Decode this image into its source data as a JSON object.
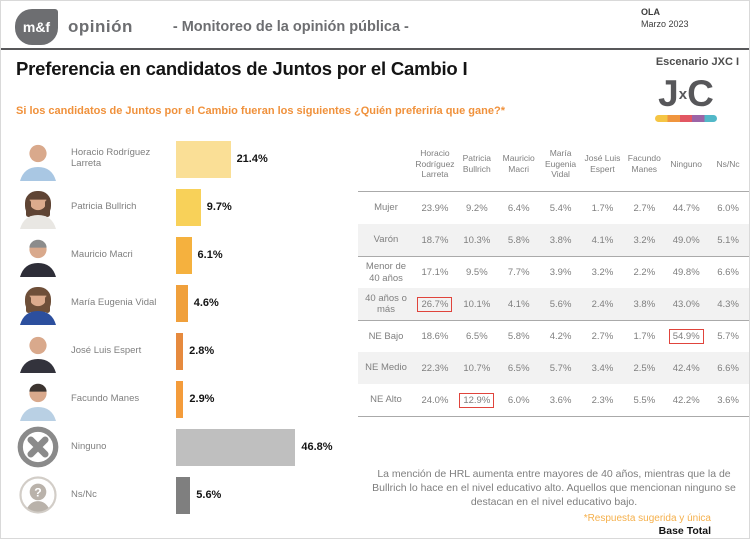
{
  "header": {
    "logo_text": "m&f",
    "logo_name": "opinión",
    "tagline": "- Monitoreo de la opinión pública -",
    "wave_label": "OLA",
    "wave_value": "Marzo 2023"
  },
  "title": "Preferencia en candidatos de Juntos por el Cambio I",
  "scenario": "Escenario JXC I",
  "jxc": {
    "left": "J",
    "mid": "x",
    "right": "C"
  },
  "question": "Si los candidatos de Juntos por el Cambio fueran los siguientes ¿Quién preferiría que gane?*",
  "colors": {
    "accent_orange": "#F0913B",
    "highlight_red": "#E0443C",
    "brand_gray": "#6D6E71",
    "text_gray": "#7F7F7F",
    "row_alt_bg": "#F2F2F2"
  },
  "chart_data": {
    "type": "bar",
    "orientation": "horizontal",
    "unit": "%",
    "title": "Preferencia en candidatos de Juntos por el Cambio I",
    "categories": [
      "Horacio Rodríguez Larreta",
      "Patricia Bullrich",
      "Mauricio Macri",
      "María Eugenia Vidal",
      "José Luis Espert",
      "Facundo Manes",
      "Ninguno",
      "Ns/Nc"
    ],
    "values": [
      21.4,
      9.7,
      6.1,
      4.6,
      2.8,
      2.9,
      46.8,
      5.6
    ],
    "labels": [
      "21.4%",
      "9.7%",
      "6.1%",
      "4.6%",
      "2.8%",
      "2.9%",
      "46.8%",
      "5.6%"
    ],
    "bar_colors": [
      "#FADF96",
      "#F8D159",
      "#F5B13E",
      "#F0A03C",
      "#E68A3E",
      "#F49C3B",
      "#BFBFBF",
      "#7F7F7F"
    ],
    "xlim": [
      0,
      50
    ],
    "avatars": [
      {
        "icon": "photo-larreta-icon",
        "kind": "person",
        "bald": true,
        "long": false,
        "hair": "#c9b8a8",
        "skin": "#d9a98c",
        "shirt": "#a9c7e3"
      },
      {
        "icon": "photo-bullrich-icon",
        "kind": "person",
        "bald": false,
        "long": true,
        "hair": "#5f4434",
        "skin": "#dcab8d",
        "shirt": "#e9e7e3"
      },
      {
        "icon": "photo-macri-icon",
        "kind": "person",
        "bald": false,
        "long": false,
        "hair": "#8c8c8c",
        "skin": "#d9a98c",
        "shirt": "#2e2e38"
      },
      {
        "icon": "photo-vidal-icon",
        "kind": "person",
        "bald": false,
        "long": true,
        "hair": "#6e4f39",
        "skin": "#dcab8d",
        "shirt": "#2c4f9e"
      },
      {
        "icon": "photo-espert-icon",
        "kind": "person",
        "bald": true,
        "long": false,
        "hair": "#b5aca3",
        "skin": "#d9a98c",
        "shirt": "#33333c"
      },
      {
        "icon": "photo-manes-icon",
        "kind": "person",
        "bald": false,
        "long": false,
        "hair": "#3c3430",
        "skin": "#d9a98c",
        "shirt": "#b9d0e4"
      },
      {
        "icon": "none-cross-icon",
        "kind": "cross"
      },
      {
        "icon": "nsnc-question-icon",
        "kind": "question"
      }
    ]
  },
  "table": {
    "columns": [
      "Horacio Rodríguez Larreta",
      "Patricia Bullrich",
      "Mauricio Macri",
      "María Eugenia Vidal",
      "José Luis Espert",
      "Facundo Manes",
      "Ninguno",
      "Ns/Nc"
    ],
    "rows": [
      {
        "label": "Mujer",
        "values": [
          "23.9%",
          "9.2%",
          "6.4%",
          "5.4%",
          "1.7%",
          "2.7%",
          "44.7%",
          "6.0%"
        ],
        "highlight_col": null
      },
      {
        "label": "Varón",
        "values": [
          "18.7%",
          "10.3%",
          "5.8%",
          "3.8%",
          "4.1%",
          "3.2%",
          "49.0%",
          "5.1%"
        ],
        "highlight_col": null
      },
      {
        "label": "Menor de 40 años",
        "values": [
          "17.1%",
          "9.5%",
          "7.7%",
          "3.9%",
          "3.2%",
          "2.2%",
          "49.8%",
          "6.6%"
        ],
        "highlight_col": null
      },
      {
        "label": "40 años o más",
        "values": [
          "26.7%",
          "10.1%",
          "4.1%",
          "5.6%",
          "2.4%",
          "3.8%",
          "43.0%",
          "4.3%"
        ],
        "highlight_col": 0
      },
      {
        "label": "NE Bajo",
        "values": [
          "18.6%",
          "6.5%",
          "5.8%",
          "4.2%",
          "2.7%",
          "1.7%",
          "54.9%",
          "5.7%"
        ],
        "highlight_col": 6
      },
      {
        "label": "NE Medio",
        "values": [
          "22.3%",
          "10.7%",
          "6.5%",
          "5.7%",
          "3.4%",
          "2.5%",
          "42.4%",
          "6.6%"
        ],
        "highlight_col": null
      },
      {
        "label": "NE Alto",
        "values": [
          "24.0%",
          "12.9%",
          "6.0%",
          "3.6%",
          "2.3%",
          "5.5%",
          "42.2%",
          "3.6%"
        ],
        "highlight_col": 1
      }
    ],
    "group_start_rows": [
      2,
      4
    ]
  },
  "note": "La mención de HRL aumenta entre mayores de 40 años, mientras que la de Bullrich lo hace en el nivel educativo alto. Aquellos que mencionan ninguno se destacan en el nivel educativo bajo.",
  "footer": {
    "suggested_note": "*Respuesta sugerida y única",
    "base_label": "Base Total"
  }
}
